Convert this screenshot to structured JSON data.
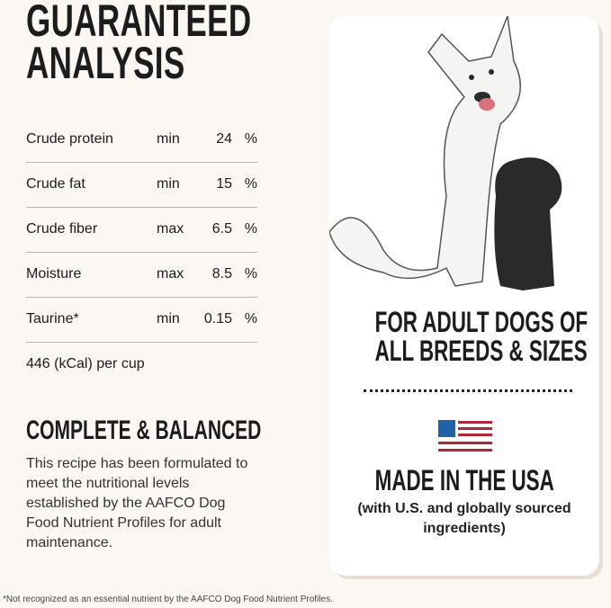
{
  "title": [
    "GUARANTEED",
    "ANALYSIS"
  ],
  "analysis": [
    {
      "nutrient": "Crude protein",
      "qualifier": "min",
      "value": "24",
      "unit": "%"
    },
    {
      "nutrient": "Crude fat",
      "qualifier": "min",
      "value": "15",
      "unit": "%"
    },
    {
      "nutrient": "Crude fiber",
      "qualifier": "max",
      "value": "6.5",
      "unit": "%"
    },
    {
      "nutrient": "Moisture",
      "qualifier": "max",
      "value": "8.5",
      "unit": "%"
    },
    {
      "nutrient": "Taurine*",
      "qualifier": "min",
      "value": "0.15",
      "unit": "%"
    }
  ],
  "calories": "446 (kCal) per cup",
  "complete": {
    "title": "COMPLETE & BALANCED",
    "text": "This recipe has been formulated to meet the nutritional levels established by the AAFCO Dog Food Nutrient Profiles for adult maintenance."
  },
  "card": {
    "for": [
      "FOR ADULT DOGS OF",
      "ALL BREEDS & SIZES"
    ],
    "made": "MADE IN THE USA",
    "sourced": "(with U.S. and globally sourced ingredients)"
  },
  "colors": {
    "flag_blue": "#1f62a8",
    "flag_red": "#b3273a",
    "background": "#fbf8f3"
  },
  "footnote": "*Not recognized as an essential nutrient by the AAFCO Dog Food Nutrient Profiles."
}
